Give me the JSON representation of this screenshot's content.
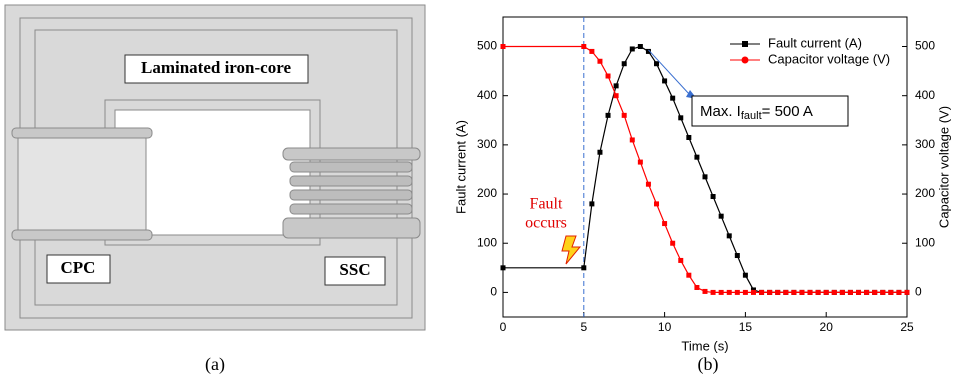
{
  "panel_a": {
    "labels": [
      "Laminated iron-core",
      "CPC",
      "SSC"
    ],
    "caption": "(a)"
  },
  "panel_b": {
    "caption": "(b)"
  },
  "chart_data": {
    "type": "line",
    "xlabel": "Time (s)",
    "ylabel": "Fault current (A)",
    "y2label": "Capacitor voltage (V)",
    "x": [
      0,
      5,
      5.5,
      6,
      6.5,
      7,
      7.5,
      8,
      8.5,
      9,
      9.5,
      10,
      10.5,
      11,
      11.5,
      12,
      12.5,
      13,
      13.5,
      14,
      14.5,
      15,
      15.5,
      16,
      16.5,
      17,
      17.5,
      18,
      18.5,
      19,
      19.5,
      20,
      20.5,
      21,
      21.5,
      22,
      22.5,
      23,
      23.5,
      24,
      24.5,
      25
    ],
    "series": [
      {
        "name": "Fault current (A)",
        "color": "#000000",
        "values": [
          50,
          50,
          180,
          285,
          360,
          420,
          465,
          495,
          500,
          490,
          465,
          430,
          395,
          355,
          315,
          275,
          235,
          195,
          155,
          115,
          75,
          35,
          5,
          0,
          0,
          0,
          0,
          0,
          0,
          0,
          0,
          0,
          0,
          0,
          0,
          0,
          0,
          0,
          0,
          0,
          0,
          0
        ]
      },
      {
        "name": "Capacitor voltage (V)",
        "color": "#ff0000",
        "axis": "y2",
        "values": [
          500,
          500,
          490,
          470,
          440,
          400,
          360,
          310,
          265,
          220,
          180,
          140,
          100,
          65,
          35,
          10,
          2,
          0,
          0,
          0,
          0,
          0,
          0,
          0,
          0,
          0,
          0,
          0,
          0,
          0,
          0,
          0,
          0,
          0,
          0,
          0,
          0,
          0,
          0,
          0,
          0,
          0
        ]
      }
    ],
    "xlim": [
      0,
      25
    ],
    "xticks": [
      0,
      5,
      10,
      15,
      20,
      25
    ],
    "ylim": [
      -50,
      560
    ],
    "yticks": [
      0,
      100,
      200,
      300,
      400,
      500
    ],
    "y2lim": [
      -50,
      560
    ],
    "y2ticks": [
      0,
      100,
      200,
      300,
      400,
      500
    ],
    "vline": 5,
    "legend": "upper right",
    "annotations": {
      "max_prefix": "Max. I",
      "max_sub": "fault",
      "max_suffix": "= 500 A",
      "fault": [
        "Fault",
        "occurs"
      ]
    }
  }
}
